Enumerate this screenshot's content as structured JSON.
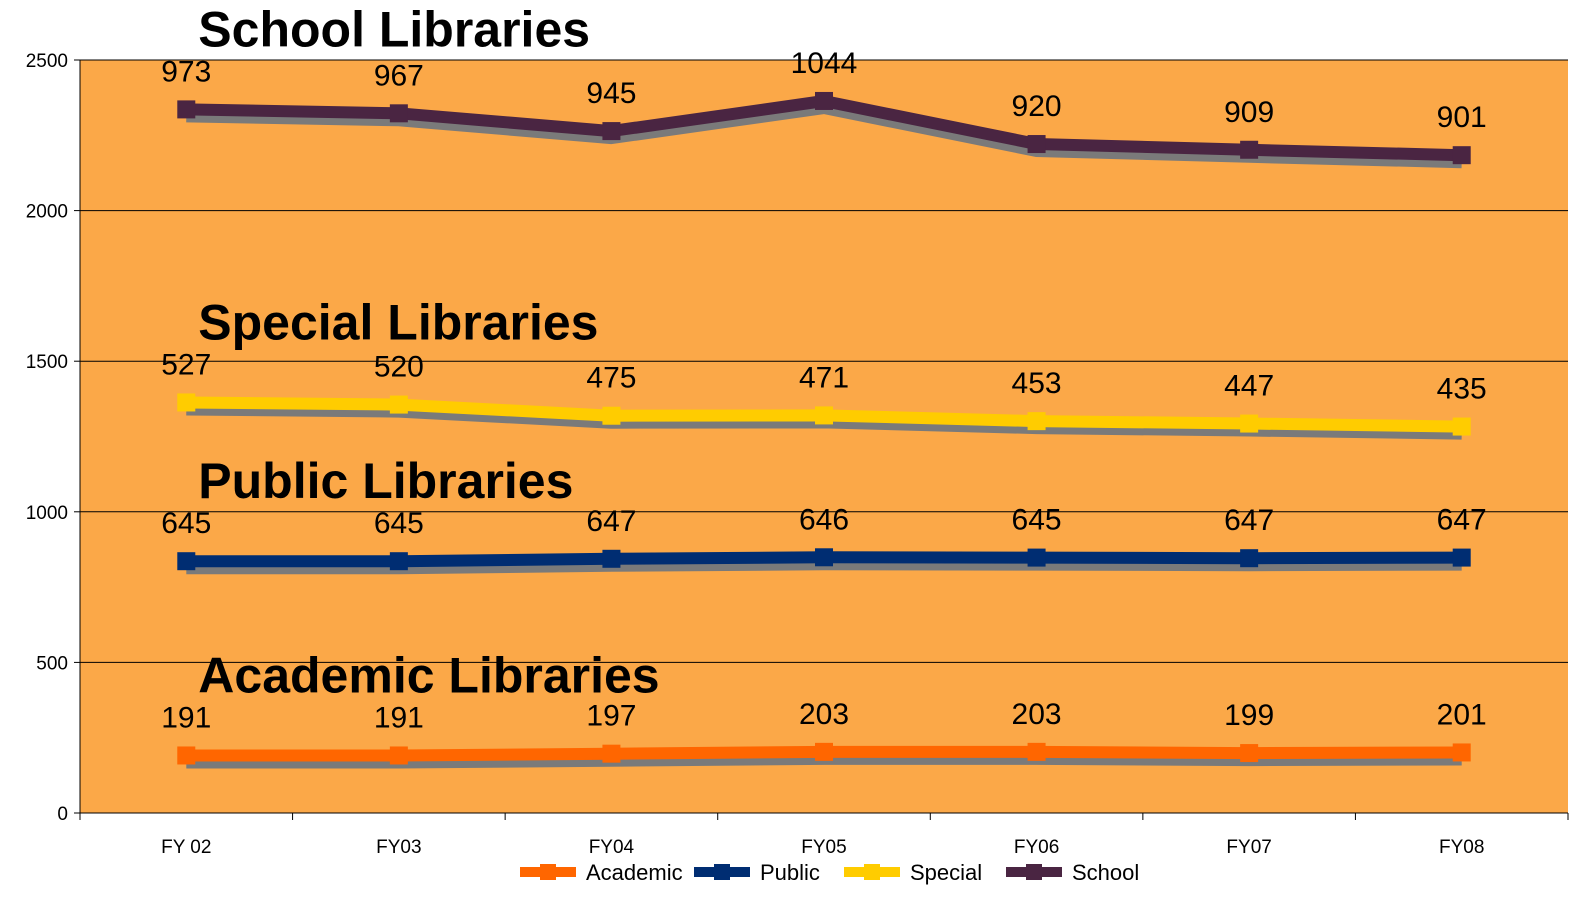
{
  "chart_data": {
    "type": "line",
    "categories": [
      "FY 02",
      "FY03",
      "FY04",
      "FY05",
      "FY06",
      "FY07",
      "FY08"
    ],
    "ylim": [
      0,
      2500
    ],
    "yticks": [
      0,
      500,
      1000,
      1500,
      2000,
      2500
    ],
    "grid": true,
    "plot_background": "#FBA848",
    "legend_position": "bottom",
    "series": [
      {
        "name": "Academic",
        "color": "#FF6600",
        "values": [
          191,
          191,
          197,
          203,
          203,
          199,
          201
        ],
        "labels": [
          "191",
          "191",
          "197",
          "203",
          "203",
          "199",
          "201"
        ]
      },
      {
        "name": "Public",
        "color": "#002D72",
        "values": [
          645,
          645,
          647,
          646,
          645,
          647,
          647
        ],
        "labels": [
          "645",
          "645",
          "647",
          "646",
          "645",
          "647",
          "647"
        ]
      },
      {
        "name": "Special",
        "color": "#FFCC00",
        "values": [
          527,
          520,
          475,
          471,
          453,
          447,
          435
        ],
        "labels": [
          "527",
          "520",
          "475",
          "471",
          "453",
          "447",
          "435"
        ]
      },
      {
        "name": "School",
        "color": "#4A2542",
        "values": [
          973,
          967,
          945,
          1044,
          920,
          909,
          901
        ],
        "labels": [
          "973",
          "967",
          "945",
          "1044",
          "920",
          "909",
          "901"
        ]
      }
    ],
    "stacked": true,
    "group_titles": [
      "Academic Libraries",
      "Public Libraries",
      "Special Libraries",
      "School Libraries"
    ]
  }
}
